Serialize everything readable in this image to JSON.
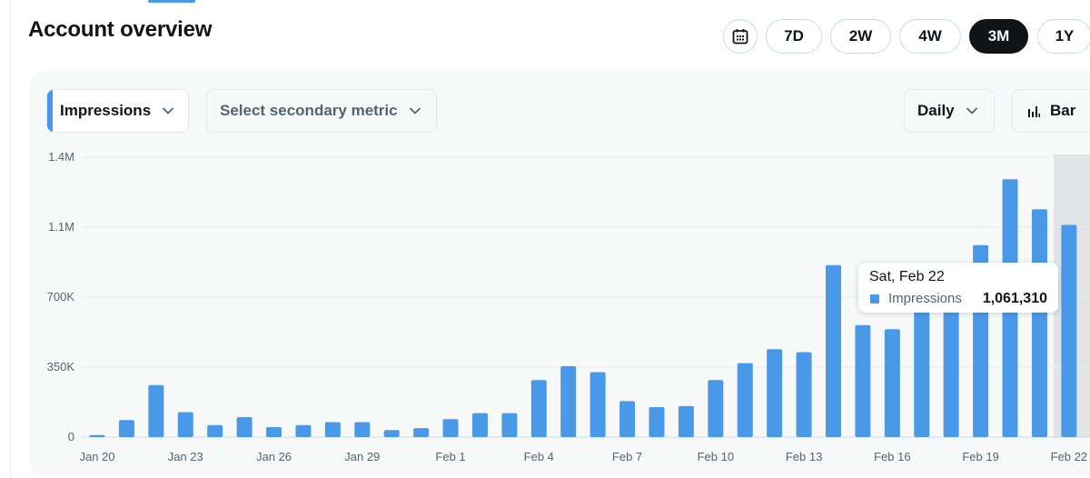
{
  "header": {
    "title": "Account overview",
    "calendar_icon": "calendar-icon",
    "ranges": [
      {
        "label": "7D",
        "active": false
      },
      {
        "label": "2W",
        "active": false
      },
      {
        "label": "4W",
        "active": false
      },
      {
        "label": "3M",
        "active": true
      },
      {
        "label": "1Y",
        "active": false
      }
    ]
  },
  "controls": {
    "primary_metric": "Impressions",
    "secondary_metric_placeholder": "Select secondary metric",
    "interval": "Daily",
    "chart_type": "Bar",
    "chevron_icon": "chevron-down-icon",
    "bar_chart_icon": "bar-chart-icon"
  },
  "colors": {
    "bar": "#4a99e9",
    "accent": "#4a99e9",
    "active_button": "#0f1419",
    "hover_band": "#e1e3e4"
  },
  "tooltip": {
    "date": "Sat, Feb 22",
    "series": "Impressions",
    "value": "1,061,310"
  },
  "chart_data": {
    "type": "bar",
    "series": [
      {
        "name": "Impressions",
        "values": [
          10000,
          85000,
          260000,
          125000,
          60000,
          100000,
          50000,
          60000,
          75000,
          75000,
          35000,
          45000,
          90000,
          120000,
          120000,
          285000,
          355000,
          325000,
          180000,
          150000,
          155000,
          285000,
          370000,
          440000,
          425000,
          860000,
          560000,
          540000,
          750000,
          865000,
          960000,
          1290000,
          1140000,
          1061310
        ]
      }
    ],
    "categories": [
      "Jan 20",
      "Jan 21",
      "Jan 22",
      "Jan 23",
      "Jan 24",
      "Jan 25",
      "Jan 26",
      "Jan 27",
      "Jan 28",
      "Jan 29",
      "Jan 30",
      "Jan 31",
      "Feb 1",
      "Feb 2",
      "Feb 3",
      "Feb 4",
      "Feb 5",
      "Feb 6",
      "Feb 7",
      "Feb 8",
      "Feb 9",
      "Feb 10",
      "Feb 11",
      "Feb 12",
      "Feb 13",
      "Feb 14",
      "Feb 15",
      "Feb 16",
      "Feb 17",
      "Feb 18",
      "Feb 19",
      "Feb 20",
      "Feb 21",
      "Feb 22"
    ],
    "x_tick_labels": [
      "Jan 20",
      "Jan 23",
      "Jan 26",
      "Jan 29",
      "Feb 1",
      "Feb 4",
      "Feb 7",
      "Feb 10",
      "Feb 13",
      "Feb 16",
      "Feb 19",
      "Feb 22"
    ],
    "y_tick_labels": [
      "0",
      "350K",
      "700K",
      "1.1M",
      "1.4M"
    ],
    "y_ticks": [
      0,
      350000,
      700000,
      1050000,
      1400000
    ],
    "ylim": [
      0,
      1400000
    ],
    "highlighted_category": "Feb 22",
    "grid": true
  }
}
